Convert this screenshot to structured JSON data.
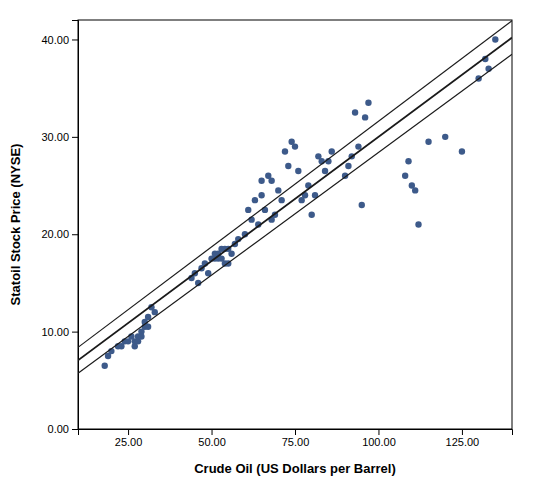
{
  "chart_data": {
    "type": "scatter",
    "xlabel": "Crude Oil  (US Dollars per Barrel)",
    "ylabel": "Statoil Stock Price (NYSE)",
    "xlim": [
      10,
      140
    ],
    "ylim": [
      0,
      42
    ],
    "xticks": [
      {
        "value": 25,
        "label": "25.00"
      },
      {
        "value": 50,
        "label": "50.00"
      },
      {
        "value": 75,
        "label": "75.00"
      },
      {
        "value": 100,
        "label": "100.00"
      },
      {
        "value": 125,
        "label": "125.00"
      }
    ],
    "yticks": [
      {
        "value": 0,
        "label": "0.00"
      },
      {
        "value": 10,
        "label": "10.00"
      },
      {
        "value": 20,
        "label": "20.00"
      },
      {
        "value": 30,
        "label": "30.00"
      },
      {
        "value": 40,
        "label": "40.00"
      }
    ],
    "grid": false,
    "series": [
      {
        "type": "scatter",
        "color": "#3d5a8a",
        "x": [
          18,
          19,
          20,
          22,
          23,
          24,
          25,
          26,
          27,
          27,
          28,
          28,
          29,
          29,
          30,
          30,
          31,
          31,
          32,
          33,
          44,
          45,
          46,
          47,
          48,
          49,
          50,
          51,
          51,
          52,
          52,
          53,
          53,
          54,
          54,
          55,
          55,
          56,
          57,
          58,
          60,
          61,
          62,
          63,
          64,
          65,
          65,
          66,
          67,
          68,
          68,
          69,
          70,
          71,
          72,
          73,
          74,
          75,
          76,
          77,
          78,
          79,
          80,
          81,
          82,
          83,
          84,
          85,
          86,
          90,
          91,
          92,
          93,
          94,
          95,
          96,
          97,
          108,
          109,
          110,
          111,
          112,
          115,
          120,
          125,
          130,
          132,
          133,
          135
        ],
        "values": [
          6.5,
          7.5,
          8.0,
          8.5,
          8.5,
          9.0,
          9.0,
          9.5,
          9.0,
          8.5,
          9.0,
          9.5,
          10.0,
          9.5,
          10.5,
          11.0,
          10.5,
          11.5,
          12.5,
          12.0,
          15.5,
          16.0,
          15.0,
          16.5,
          17.0,
          16.0,
          17.5,
          17.5,
          18.0,
          17.5,
          18.0,
          18.5,
          17.5,
          17.0,
          18.5,
          17.0,
          18.5,
          18.0,
          19.0,
          19.5,
          20.0,
          22.5,
          21.5,
          23.5,
          21.0,
          25.5,
          24.0,
          22.5,
          26.0,
          25.5,
          21.5,
          22.0,
          24.5,
          23.5,
          28.5,
          27.0,
          29.5,
          29.0,
          26.5,
          23.5,
          24.0,
          25.0,
          22.0,
          24.0,
          28.0,
          27.5,
          26.5,
          27.5,
          28.5,
          26.0,
          27.0,
          28.0,
          32.5,
          29.0,
          23.0,
          32.0,
          33.5,
          26.0,
          27.5,
          25.0,
          24.5,
          21.0,
          29.5,
          30.0,
          28.5,
          36.0,
          38.0,
          37.0,
          40.0
        ]
      },
      {
        "type": "line",
        "color": "#1a1a1a",
        "x": [
          10,
          140
        ],
        "values": [
          7.05,
          40.2
        ]
      },
      {
        "type": "line",
        "color": "#1a1a1a",
        "x": [
          10,
          140
        ],
        "values": [
          8.38,
          41.92
        ]
      },
      {
        "type": "line",
        "color": "#1a1a1a",
        "x": [
          10,
          140
        ],
        "values": [
          5.72,
          38.48
        ]
      }
    ]
  }
}
